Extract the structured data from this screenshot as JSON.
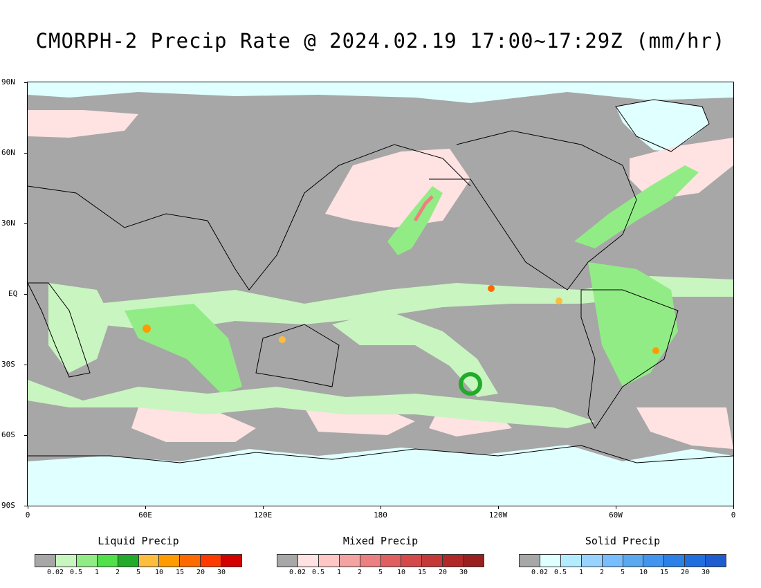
{
  "title": "CMORPH-2 Precip Rate @ 2024.02.19 17:00~17:29Z (mm/hr)",
  "latitude_labels": [
    "90N",
    "60N",
    "30N",
    "EQ",
    "30S",
    "60S",
    "90S"
  ],
  "longitude_labels": [
    "0",
    "60E",
    "120E",
    "180",
    "120W",
    "60W",
    "0"
  ],
  "legends": [
    {
      "title": "Liquid Precip",
      "colors": [
        "#a7a7a7",
        "#c8f5c0",
        "#92ec86",
        "#4fe04a",
        "#22aa2a",
        "#ffbd3d",
        "#ff9a00",
        "#ff6a00",
        "#ff3a00",
        "#d40000"
      ],
      "ticks": [
        "0.02",
        "0.5",
        "1",
        "2",
        "5",
        "10",
        "15",
        "20",
        "30"
      ]
    },
    {
      "title": "Mixed Precip",
      "colors": [
        "#a7a7a7",
        "#ffe2e2",
        "#ffc6c6",
        "#f4a3a3",
        "#ec8080",
        "#e06060",
        "#d44a4a",
        "#c43838",
        "#b02828",
        "#9a2020"
      ],
      "ticks": [
        "0.02",
        "0.5",
        "1",
        "2",
        "5",
        "10",
        "15",
        "20",
        "30"
      ]
    },
    {
      "title": "Solid Precip",
      "colors": [
        "#a7a7a7",
        "#e0ffff",
        "#b4ecff",
        "#98d2ff",
        "#78beff",
        "#5aa8f0",
        "#4294ee",
        "#2c80e8",
        "#206ee0",
        "#1e5cd0"
      ],
      "ticks": [
        "0.02",
        "0.5",
        "1",
        "2",
        "5",
        "10",
        "15",
        "20",
        "30"
      ]
    }
  ]
}
